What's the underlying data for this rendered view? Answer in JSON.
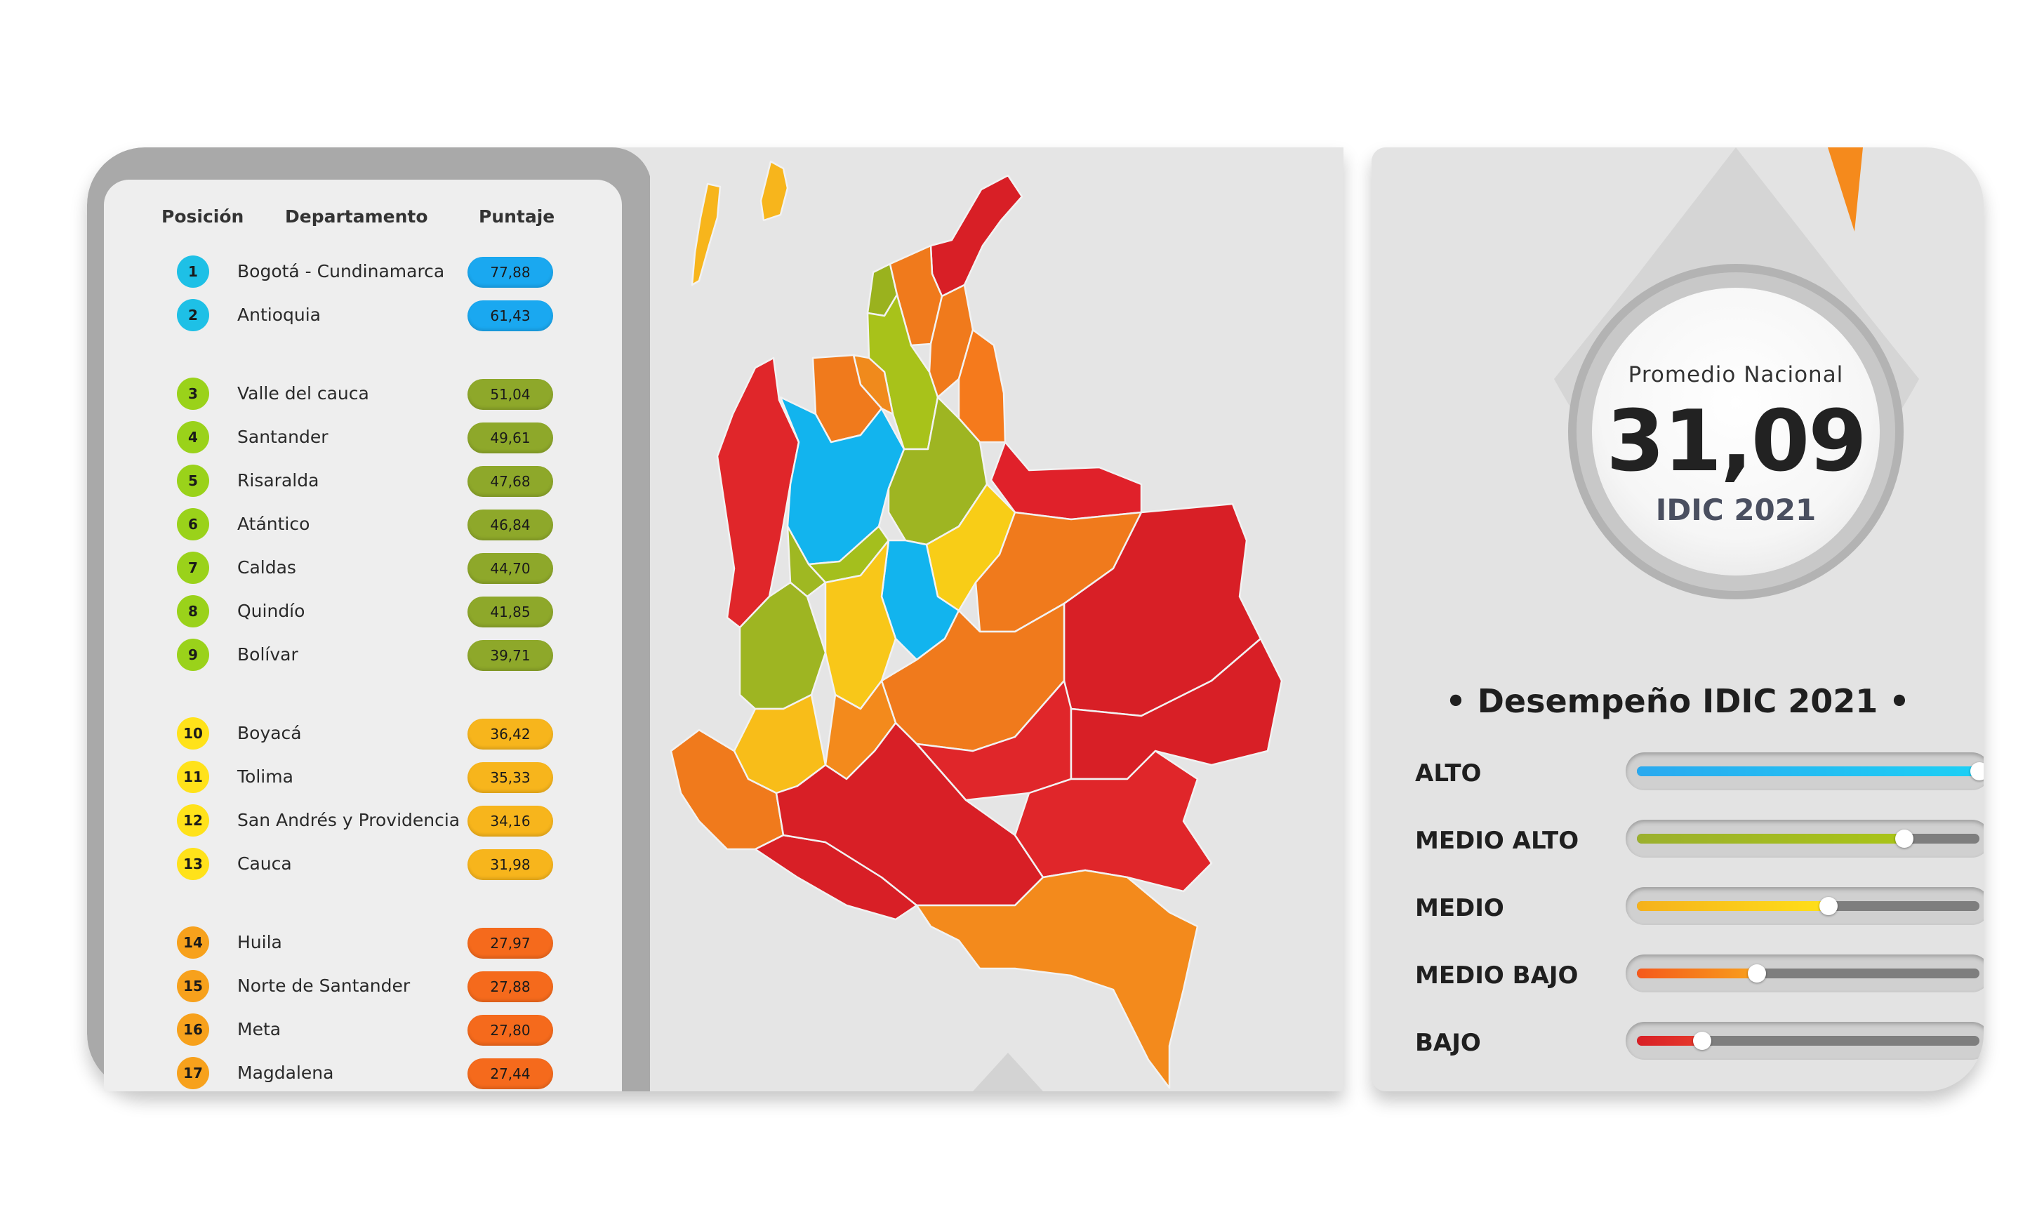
{
  "table": {
    "headers": {
      "position": "Posición",
      "department": "Departamento",
      "score": "Puntaje"
    },
    "rows": [
      {
        "pos": "1",
        "name": "Bogotá - Cundinamarca",
        "score": "77,88",
        "level": "alto"
      },
      {
        "pos": "2",
        "name": "Antioquia",
        "score": "61,43",
        "level": "alto"
      },
      {
        "pos": "3",
        "name": "Valle del cauca",
        "score": "51,04",
        "level": "medio_alto"
      },
      {
        "pos": "4",
        "name": "Santander",
        "score": "49,61",
        "level": "medio_alto"
      },
      {
        "pos": "5",
        "name": "Risaralda",
        "score": "47,68",
        "level": "medio_alto"
      },
      {
        "pos": "6",
        "name": "Atántico",
        "score": "46,84",
        "level": "medio_alto"
      },
      {
        "pos": "7",
        "name": "Caldas",
        "score": "44,70",
        "level": "medio_alto"
      },
      {
        "pos": "8",
        "name": "Quindío",
        "score": "41,85",
        "level": "medio_alto"
      },
      {
        "pos": "9",
        "name": "Bolívar",
        "score": "39,71",
        "level": "medio_alto"
      },
      {
        "pos": "10",
        "name": "Boyacá",
        "score": "36,42",
        "level": "medio"
      },
      {
        "pos": "11",
        "name": "Tolima",
        "score": "35,33",
        "level": "medio"
      },
      {
        "pos": "12",
        "name": "San Andrés y Providencia",
        "score": "34,16",
        "level": "medio"
      },
      {
        "pos": "13",
        "name": "Cauca",
        "score": "31,98",
        "level": "medio"
      },
      {
        "pos": "14",
        "name": "Huila",
        "score": "27,97",
        "level": "medio_bajo"
      },
      {
        "pos": "15",
        "name": "Norte de Santander",
        "score": "27,88",
        "level": "medio_bajo"
      },
      {
        "pos": "16",
        "name": "Meta",
        "score": "27,80",
        "level": "medio_bajo"
      },
      {
        "pos": "17",
        "name": "Magdalena",
        "score": "27,44",
        "level": "medio_bajo"
      }
    ]
  },
  "colors": {
    "alto": {
      "badge": "#1ec0e6",
      "pill": "#1aa8f0"
    },
    "medio_alto": {
      "badge": "#9ad21a",
      "pill": "#8ea82a"
    },
    "medio": {
      "badge": "#ffe21a",
      "pill": "#f7b51c"
    },
    "medio_bajo": {
      "badge": "#f7a11c",
      "pill": "#f56a1c"
    },
    "bajo": {
      "badge": "#e3262b",
      "pill": "#d81f26"
    }
  },
  "national": {
    "label": "Promedio Nacional",
    "value": "31,09",
    "subtitle": "IDIC 2021"
  },
  "performance": {
    "title": "• Desempeño IDIC 2021 •",
    "levels": [
      {
        "name": "ALTO",
        "fill": 1.0,
        "color_from": "#2aa9ef",
        "color_to": "#1cd0f5"
      },
      {
        "name": "MEDIO ALTO",
        "fill": 0.78,
        "color_from": "#9bb02e",
        "color_to": "#a9c417"
      },
      {
        "name": "MEDIO",
        "fill": 0.56,
        "color_from": "#f5b11c",
        "color_to": "#ffe01a"
      },
      {
        "name": "MEDIO BAJO",
        "fill": 0.35,
        "color_from": "#f5591c",
        "color_to": "#f8a01c"
      },
      {
        "name": "BAJO",
        "fill": 0.19,
        "color_from": "#d81f26",
        "color_to": "#e73a2c"
      }
    ]
  }
}
